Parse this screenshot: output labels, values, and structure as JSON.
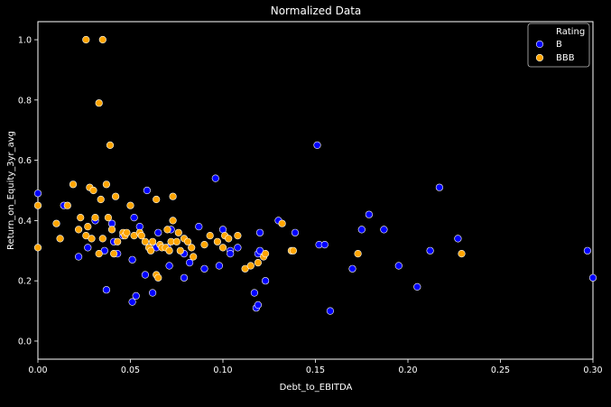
{
  "chart_data": {
    "type": "scatter",
    "title": "Normalized Data",
    "xlabel": "Debt_to_EBITDA",
    "ylabel": "Return_on_Equity_3yr_avg",
    "xlim": [
      0,
      0.3
    ],
    "ylim": [
      -0.06,
      1.06
    ],
    "xticks": [
      {
        "value": 0.0,
        "label": "0.00"
      },
      {
        "value": 0.05,
        "label": "0.05"
      },
      {
        "value": 0.1,
        "label": "0.10"
      },
      {
        "value": 0.15,
        "label": "0.15"
      },
      {
        "value": 0.2,
        "label": "0.20"
      },
      {
        "value": 0.25,
        "label": "0.25"
      },
      {
        "value": 0.3,
        "label": "0.30"
      }
    ],
    "yticks": [
      {
        "value": 0.0,
        "label": "0.0"
      },
      {
        "value": 0.2,
        "label": "0.2"
      },
      {
        "value": 0.4,
        "label": "0.4"
      },
      {
        "value": 0.6,
        "label": "0.6"
      },
      {
        "value": 0.8,
        "label": "0.8"
      },
      {
        "value": 1.0,
        "label": "1.0"
      }
    ],
    "grid": false,
    "legend": {
      "title": "Rating",
      "placement": "top-right"
    },
    "series": [
      {
        "name": "B",
        "color": "#0000ff",
        "points": [
          [
            0.0,
            0.49
          ],
          [
            0.014,
            0.45
          ],
          [
            0.022,
            0.28
          ],
          [
            0.027,
            0.31
          ],
          [
            0.031,
            0.4
          ],
          [
            0.036,
            0.3
          ],
          [
            0.037,
            0.17
          ],
          [
            0.04,
            0.39
          ],
          [
            0.041,
            0.33
          ],
          [
            0.043,
            0.29
          ],
          [
            0.046,
            0.35
          ],
          [
            0.051,
            0.27
          ],
          [
            0.051,
            0.13
          ],
          [
            0.052,
            0.41
          ],
          [
            0.053,
            0.15
          ],
          [
            0.055,
            0.38
          ],
          [
            0.058,
            0.22
          ],
          [
            0.059,
            0.5
          ],
          [
            0.062,
            0.16
          ],
          [
            0.064,
            0.31
          ],
          [
            0.065,
            0.36
          ],
          [
            0.07,
            0.31
          ],
          [
            0.071,
            0.25
          ],
          [
            0.072,
            0.37
          ],
          [
            0.079,
            0.29
          ],
          [
            0.079,
            0.21
          ],
          [
            0.082,
            0.26
          ],
          [
            0.087,
            0.38
          ],
          [
            0.09,
            0.24
          ],
          [
            0.096,
            0.54
          ],
          [
            0.098,
            0.25
          ],
          [
            0.1,
            0.37
          ],
          [
            0.104,
            0.3
          ],
          [
            0.104,
            0.29
          ],
          [
            0.108,
            0.31
          ],
          [
            0.117,
            0.16
          ],
          [
            0.118,
            0.11
          ],
          [
            0.119,
            0.29
          ],
          [
            0.119,
            0.12
          ],
          [
            0.12,
            0.36
          ],
          [
            0.12,
            0.3
          ],
          [
            0.123,
            0.2
          ],
          [
            0.13,
            0.4
          ],
          [
            0.139,
            0.36
          ],
          [
            0.151,
            0.65
          ],
          [
            0.152,
            0.32
          ],
          [
            0.155,
            0.32
          ],
          [
            0.158,
            0.1
          ],
          [
            0.17,
            0.24
          ],
          [
            0.175,
            0.37
          ],
          [
            0.179,
            0.42
          ],
          [
            0.187,
            0.37
          ],
          [
            0.195,
            0.25
          ],
          [
            0.205,
            0.18
          ],
          [
            0.212,
            0.3
          ],
          [
            0.217,
            0.51
          ],
          [
            0.227,
            0.34
          ],
          [
            0.297,
            0.3
          ],
          [
            0.3,
            0.21
          ]
        ]
      },
      {
        "name": "BBB",
        "color": "#ffa500",
        "points": [
          [
            0.0,
            0.45
          ],
          [
            0.0,
            0.31
          ],
          [
            0.01,
            0.39
          ],
          [
            0.012,
            0.34
          ],
          [
            0.016,
            0.45
          ],
          [
            0.019,
            0.52
          ],
          [
            0.022,
            0.37
          ],
          [
            0.023,
            0.41
          ],
          [
            0.026,
            1.0
          ],
          [
            0.026,
            0.35
          ],
          [
            0.027,
            0.38
          ],
          [
            0.028,
            0.51
          ],
          [
            0.029,
            0.34
          ],
          [
            0.03,
            0.5
          ],
          [
            0.031,
            0.41
          ],
          [
            0.033,
            0.79
          ],
          [
            0.033,
            0.29
          ],
          [
            0.034,
            0.47
          ],
          [
            0.035,
            0.34
          ],
          [
            0.035,
            1.0
          ],
          [
            0.037,
            0.52
          ],
          [
            0.038,
            0.41
          ],
          [
            0.039,
            0.65
          ],
          [
            0.04,
            0.37
          ],
          [
            0.041,
            0.29
          ],
          [
            0.042,
            0.48
          ],
          [
            0.043,
            0.33
          ],
          [
            0.046,
            0.36
          ],
          [
            0.047,
            0.35
          ],
          [
            0.048,
            0.36
          ],
          [
            0.05,
            0.45
          ],
          [
            0.052,
            0.35
          ],
          [
            0.055,
            0.36
          ],
          [
            0.056,
            0.35
          ],
          [
            0.058,
            0.33
          ],
          [
            0.06,
            0.31
          ],
          [
            0.061,
            0.3
          ],
          [
            0.062,
            0.33
          ],
          [
            0.064,
            0.47
          ],
          [
            0.064,
            0.22
          ],
          [
            0.065,
            0.21
          ],
          [
            0.066,
            0.32
          ],
          [
            0.067,
            0.31
          ],
          [
            0.069,
            0.31
          ],
          [
            0.07,
            0.37
          ],
          [
            0.071,
            0.3
          ],
          [
            0.072,
            0.33
          ],
          [
            0.073,
            0.4
          ],
          [
            0.073,
            0.48
          ],
          [
            0.075,
            0.33
          ],
          [
            0.076,
            0.36
          ],
          [
            0.077,
            0.3
          ],
          [
            0.079,
            0.34
          ],
          [
            0.081,
            0.33
          ],
          [
            0.083,
            0.31
          ],
          [
            0.084,
            0.28
          ],
          [
            0.09,
            0.32
          ],
          [
            0.093,
            0.35
          ],
          [
            0.097,
            0.33
          ],
          [
            0.1,
            0.31
          ],
          [
            0.101,
            0.35
          ],
          [
            0.103,
            0.34
          ],
          [
            0.108,
            0.35
          ],
          [
            0.112,
            0.24
          ],
          [
            0.115,
            0.25
          ],
          [
            0.119,
            0.26
          ],
          [
            0.122,
            0.28
          ],
          [
            0.123,
            0.29
          ],
          [
            0.132,
            0.39
          ],
          [
            0.137,
            0.3
          ],
          [
            0.138,
            0.3
          ],
          [
            0.173,
            0.29
          ],
          [
            0.229,
            0.29
          ]
        ]
      }
    ]
  }
}
